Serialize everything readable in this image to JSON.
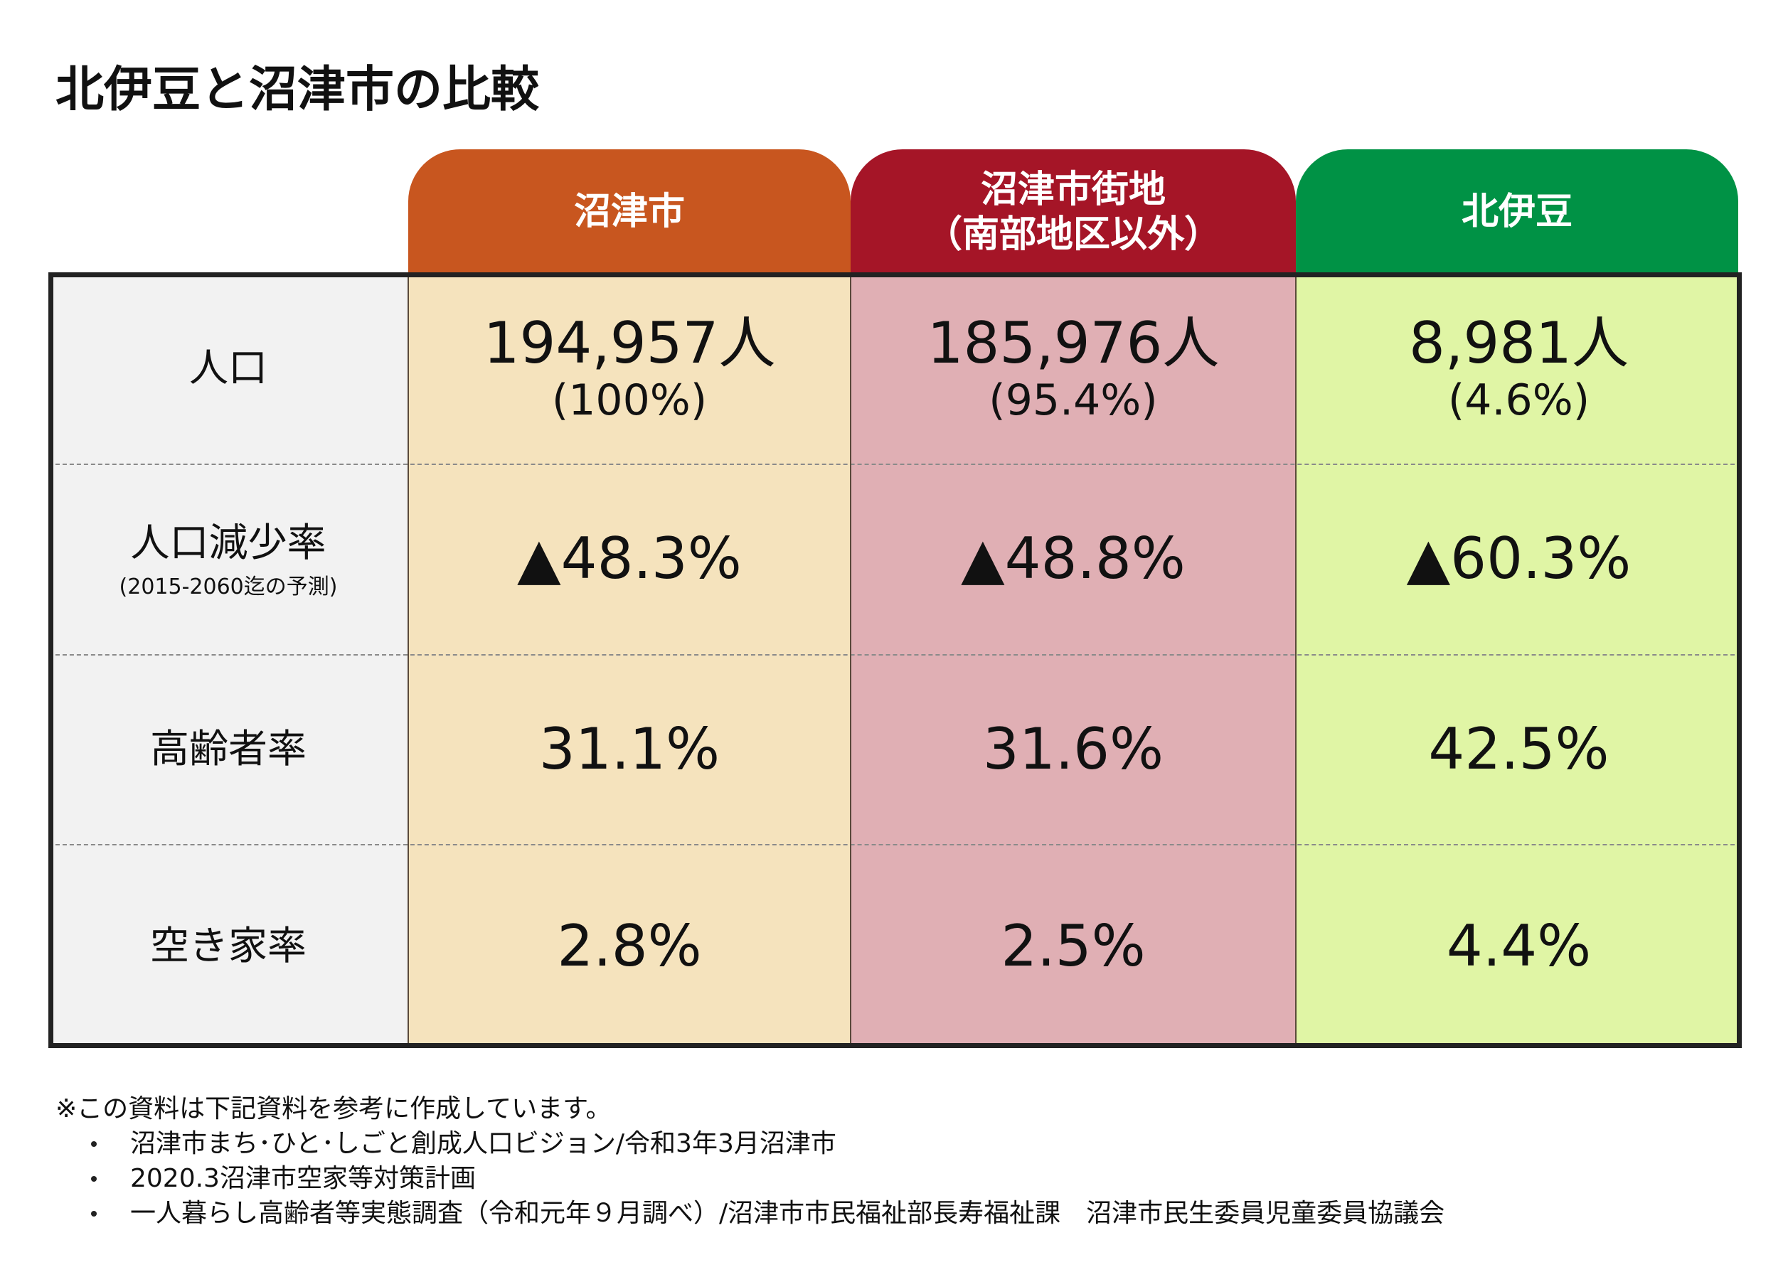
{
  "title": "北伊豆と沼津市の比較",
  "table": {
    "columns": [
      [
        "沼津市"
      ],
      [
        "沼津市街地",
        "（南部地区以外）"
      ],
      [
        "北伊豆"
      ]
    ],
    "rows": [
      {
        "label": [
          "人口"
        ],
        "cells": [
          [
            "194,957人",
            "(100%)"
          ],
          [
            "185,976人",
            "(95.4%)"
          ],
          [
            "8,981人",
            "(4.6%)"
          ]
        ]
      },
      {
        "label": [
          "人口減少率",
          "(2015-2060迄の予測)"
        ],
        "cells": [
          [
            "▲48.3%"
          ],
          [
            "▲48.8%"
          ],
          [
            "▲60.3%"
          ]
        ]
      },
      {
        "label": [
          "高齢者率"
        ],
        "cells": [
          [
            "31.1%"
          ],
          [
            "31.6%"
          ],
          [
            "42.5%"
          ]
        ]
      },
      {
        "label": [
          "空き家率"
        ],
        "cells": [
          [
            "2.8%"
          ],
          [
            "2.5%"
          ],
          [
            "4.4%"
          ]
        ]
      }
    ]
  },
  "notes": {
    "intro": "※この資料は下記資料を参考に作成しています。",
    "items": [
      "沼津市まち･ひと･しごと創成人口ビジョン/令和3年3月沼津市",
      "2020.3沼津市空家等対策計画",
      "一人暮らし高齢者等実態調査（令和元年９月調べ）/沼津市市民福祉部長寿福祉課　沼津市民生委員児童委員協議会"
    ]
  }
}
